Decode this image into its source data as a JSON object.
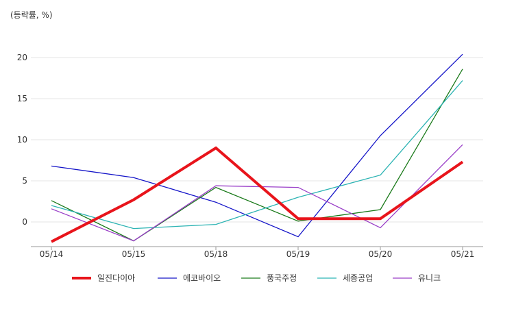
{
  "chart_data": {
    "type": "line",
    "unit_label": "(등락률, %)",
    "categories": [
      "05/14",
      "05/15",
      "05/18",
      "05/19",
      "05/20",
      "05/21"
    ],
    "ylim": [
      -3,
      22
    ],
    "yticks": [
      0,
      5,
      10,
      15,
      20
    ],
    "grid": "horizontal",
    "legend_position": "bottom",
    "series": [
      {
        "name": "일진다이아",
        "color": "#e8141b",
        "values": [
          -2.4,
          2.7,
          9.0,
          0.4,
          0.4,
          7.3
        ],
        "emphasis": true
      },
      {
        "name": "에코바이오",
        "color": "#1414c8",
        "values": [
          6.8,
          5.4,
          2.4,
          -1.8,
          10.5,
          20.4
        ]
      },
      {
        "name": "풍국주정",
        "color": "#1a7a1a",
        "values": [
          2.6,
          -2.3,
          4.2,
          0.1,
          1.5,
          18.6
        ]
      },
      {
        "name": "세종공업",
        "color": "#2bb3b3",
        "values": [
          2.0,
          -0.8,
          -0.3,
          3.0,
          5.7,
          17.2
        ]
      },
      {
        "name": "유니크",
        "color": "#9a3fc8",
        "values": [
          1.6,
          -2.3,
          4.4,
          4.2,
          -0.7,
          9.4
        ]
      }
    ]
  }
}
